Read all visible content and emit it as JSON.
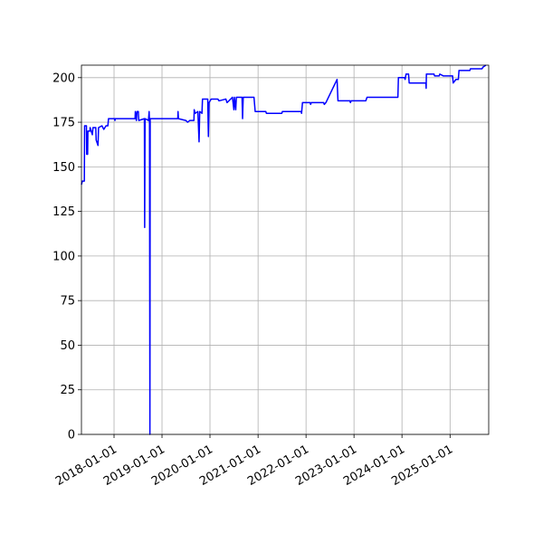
{
  "chart_data": {
    "type": "line",
    "x": [
      "2017-04-28",
      "2017-05-05",
      "2017-05-20",
      "2017-05-22",
      "2017-06-05",
      "2017-06-07",
      "2017-06-14",
      "2017-06-16",
      "2017-07-01",
      "2017-07-03",
      "2017-07-20",
      "2017-07-25",
      "2017-08-15",
      "2017-08-18",
      "2017-09-01",
      "2017-09-05",
      "2017-10-01",
      "2017-10-15",
      "2017-11-01",
      "2017-11-15",
      "2017-11-20",
      "2018-01-05",
      "2018-01-08",
      "2018-01-10",
      "2018-06-10",
      "2018-06-12",
      "2018-06-20",
      "2018-06-25",
      "2018-07-05",
      "2018-07-08",
      "2018-08-20",
      "2018-08-22",
      "2018-08-25",
      "2018-09-20",
      "2018-09-25",
      "2018-09-28",
      "2018-10-01",
      "2018-10-03",
      "2019-05-01",
      "2019-05-03",
      "2019-05-06",
      "2019-07-01",
      "2019-07-15",
      "2019-08-01",
      "2019-09-01",
      "2019-09-03",
      "2019-09-10",
      "2019-10-01",
      "2019-10-10",
      "2019-10-15",
      "2019-11-01",
      "2019-11-05",
      "2019-12-15",
      "2019-12-20",
      "2019-12-25",
      "2020-01-10",
      "2020-03-01",
      "2020-03-10",
      "2020-05-01",
      "2020-05-10",
      "2020-06-20",
      "2020-07-01",
      "2020-07-05",
      "2020-07-15",
      "2020-07-20",
      "2020-09-01",
      "2020-09-05",
      "2020-09-10",
      "2020-12-01",
      "2020-12-10",
      "2021-03-01",
      "2021-03-05",
      "2021-07-01",
      "2021-07-05",
      "2021-11-25",
      "2021-11-28",
      "2021-12-05",
      "2022-02-01",
      "2022-02-05",
      "2022-02-10",
      "2022-05-15",
      "2022-05-20",
      "2022-06-01",
      "2022-08-25",
      "2022-09-01",
      "2022-12-01",
      "2022-12-05",
      "2022-12-10",
      "2023-04-01",
      "2023-04-10",
      "2023-12-01",
      "2023-12-05",
      "2024-01-20",
      "2024-01-25",
      "2024-02-01",
      "2024-02-20",
      "2024-02-25",
      "2024-07-01",
      "2024-07-03",
      "2024-07-05",
      "2024-09-01",
      "2024-09-05",
      "2024-10-10",
      "2024-10-15",
      "2024-11-10",
      "2025-01-20",
      "2025-01-25",
      "2025-02-15",
      "2025-03-05",
      "2025-03-10",
      "2025-06-01",
      "2025-06-05",
      "2025-09-01",
      "2025-09-10",
      "2025-10-01"
    ],
    "series": [
      {
        "color": "#0000ff",
        "values": [
          140,
          142,
          142,
          173,
          173,
          157,
          157,
          170,
          170,
          172,
          168,
          172,
          172,
          165,
          162,
          172,
          173,
          171,
          173,
          173,
          177,
          177,
          176,
          177,
          177,
          181,
          176,
          181,
          181,
          176,
          177,
          116,
          177,
          176,
          181,
          174,
          0,
          177,
          177,
          181,
          177,
          176,
          175,
          176,
          176,
          182,
          180,
          181,
          164,
          181,
          180,
          188,
          188,
          167,
          186,
          188,
          188,
          187,
          188,
          186,
          189,
          182,
          189,
          182,
          189,
          189,
          177,
          189,
          189,
          181,
          181,
          180,
          180,
          181,
          181,
          180,
          186,
          186,
          185,
          186,
          186,
          185,
          186,
          199,
          187,
          187,
          186,
          187,
          187,
          189,
          189,
          200,
          200,
          199,
          202,
          202,
          197,
          197,
          194,
          202,
          202,
          201,
          201,
          202,
          201,
          201,
          197,
          199,
          199,
          204,
          204,
          205,
          205,
          206,
          207
        ]
      }
    ],
    "xlim": [
      "2017-04-28",
      "2025-10-22"
    ],
    "xticks": [
      "2018-01-01",
      "2019-01-01",
      "2020-01-01",
      "2021-01-01",
      "2022-01-01",
      "2023-01-01",
      "2024-01-01",
      "2025-01-01"
    ],
    "ylim": [
      0,
      207
    ],
    "yticks": [
      0,
      25,
      50,
      75,
      100,
      125,
      150,
      175,
      200
    ],
    "grid": true
  }
}
